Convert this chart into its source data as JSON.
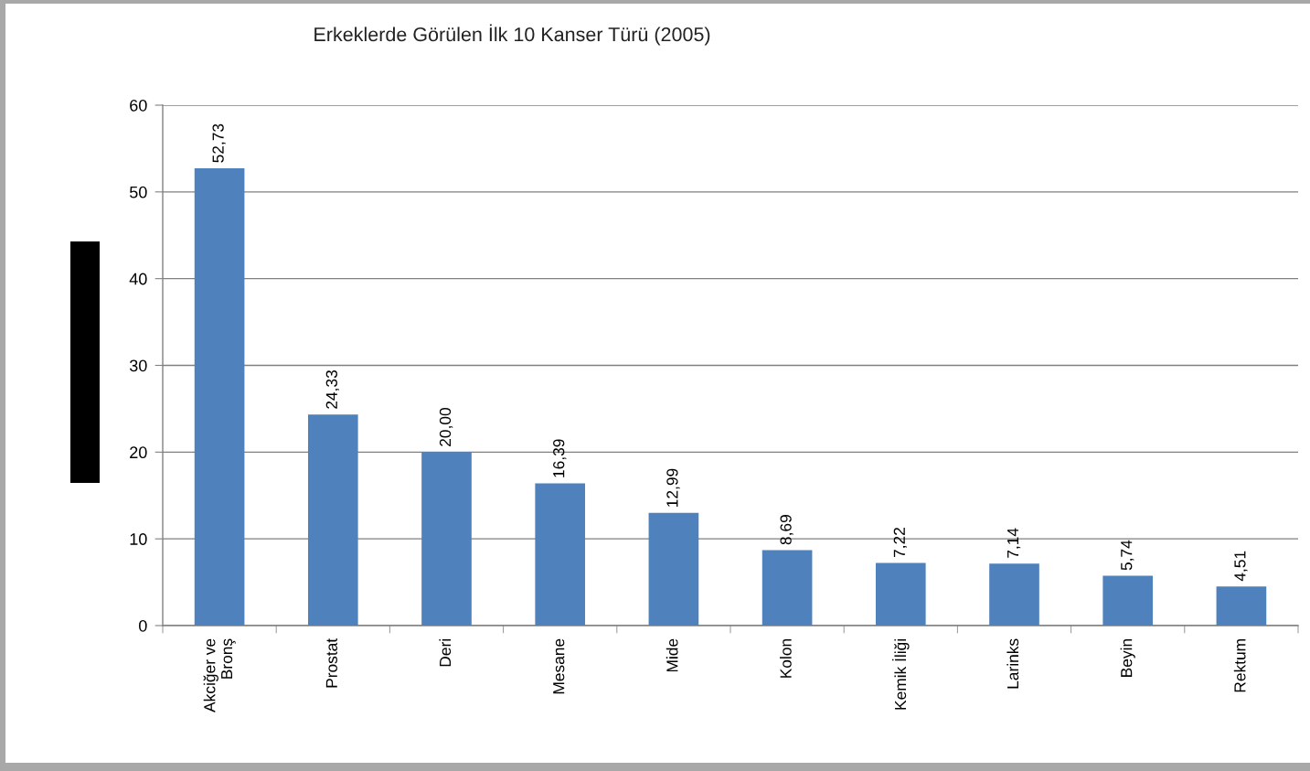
{
  "chart_data": {
    "type": "bar",
    "title": "Erkeklerde Görülen İlk 10 Kanser Türü (2005)",
    "categories": [
      "Akciğer ve\nBronş",
      "Prostat",
      "Deri",
      "Mesane",
      "Mide",
      "Kolon",
      "Kemik İliği",
      "Larinks",
      "Beyin",
      "Rektum"
    ],
    "values": [
      52.73,
      24.33,
      20.0,
      16.39,
      12.99,
      8.69,
      7.22,
      7.14,
      5.74,
      4.51
    ],
    "value_labels": [
      "52,73",
      "24,33",
      "20,00",
      "16,39",
      "12,99",
      "8,69",
      "7,22",
      "7,14",
      "5,74",
      "4,51"
    ],
    "color": "#4f81bd",
    "ylim": [
      0,
      60
    ],
    "yticks": [
      0,
      10,
      20,
      30,
      40,
      50,
      60
    ],
    "grid": "y",
    "legend": false
  }
}
